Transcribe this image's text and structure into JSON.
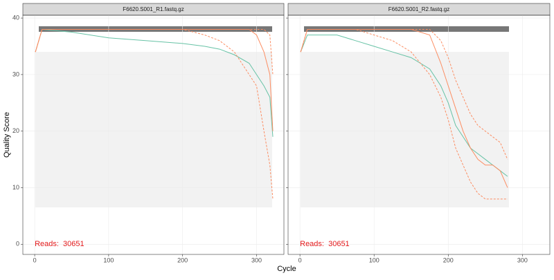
{
  "axis_labels": {
    "x": "Cycle",
    "y": "Quality Score"
  },
  "chart_data": [
    {
      "type": "line",
      "title": "F6620.S001_R1.fastq.gz",
      "annotation": "Reads:  30651",
      "annotation_color": "#e41a1c",
      "x": [
        1,
        10,
        50,
        100,
        150,
        200,
        230,
        250,
        270,
        290,
        300,
        310,
        318,
        322
      ],
      "series": [
        {
          "color": "#66c2a5",
          "linestyle": "solid",
          "values": [
            34,
            38,
            37.5,
            36.5,
            36,
            35.5,
            35,
            34.5,
            33.5,
            32,
            30,
            28,
            26,
            19
          ]
        },
        {
          "color": "#fc8d62",
          "linestyle": "solid",
          "values": [
            34,
            38,
            38,
            38,
            38,
            38,
            38,
            38,
            38,
            38,
            37,
            34,
            30,
            20
          ]
        },
        {
          "color": "#fc8d62",
          "linestyle": "dashed",
          "values": [
            34,
            38,
            38,
            38,
            38,
            38,
            37,
            36,
            34,
            30,
            28,
            20,
            14,
            8
          ]
        },
        {
          "color": "#fc8d62",
          "linestyle": "dashed",
          "values": [
            34,
            38,
            38,
            38,
            38,
            38,
            38,
            38,
            38,
            38,
            38,
            38,
            37,
            30
          ]
        }
      ],
      "xlim": [
        -16,
        337
      ],
      "xticks": [
        0,
        100,
        200,
        300
      ],
      "ylim": [
        -1.8,
        40.5
      ],
      "yticks": [
        0,
        10,
        20,
        30,
        40
      ],
      "grid": true
    },
    {
      "type": "line",
      "title": "F6620.S001_R2.fastq.gz",
      "annotation": "Reads:  30651",
      "annotation_color": "#e41a1c",
      "x": [
        1,
        10,
        50,
        75,
        100,
        125,
        150,
        175,
        190,
        200,
        210,
        220,
        230,
        240,
        250,
        260,
        270,
        280
      ],
      "series": [
        {
          "color": "#66c2a5",
          "linestyle": "solid",
          "values": [
            34,
            37,
            37,
            36,
            35,
            34,
            33,
            31,
            28,
            25,
            21,
            19,
            17,
            16,
            15,
            14,
            13,
            12
          ]
        },
        {
          "color": "#fc8d62",
          "linestyle": "solid",
          "values": [
            34,
            38,
            38,
            38,
            38,
            38,
            38,
            37,
            32,
            28,
            24,
            20,
            17,
            15,
            14,
            14,
            13,
            10
          ]
        },
        {
          "color": "#fc8d62",
          "linestyle": "dashed",
          "values": [
            34,
            38,
            38,
            38,
            37,
            36,
            34,
            30,
            26,
            22,
            17,
            14,
            11,
            9,
            8,
            8,
            8,
            8
          ]
        },
        {
          "color": "#fc8d62",
          "linestyle": "dashed",
          "values": [
            34,
            38,
            38,
            38,
            38,
            38,
            38,
            38,
            36,
            33,
            29,
            26,
            23,
            21,
            20,
            19,
            18,
            15
          ]
        }
      ],
      "xlim": [
        -16,
        337
      ],
      "xticks": [
        0,
        100,
        200,
        300
      ],
      "ylim": [
        -1.8,
        40.5
      ],
      "yticks": [
        0,
        10,
        20,
        30,
        40
      ],
      "grid": true
    }
  ]
}
